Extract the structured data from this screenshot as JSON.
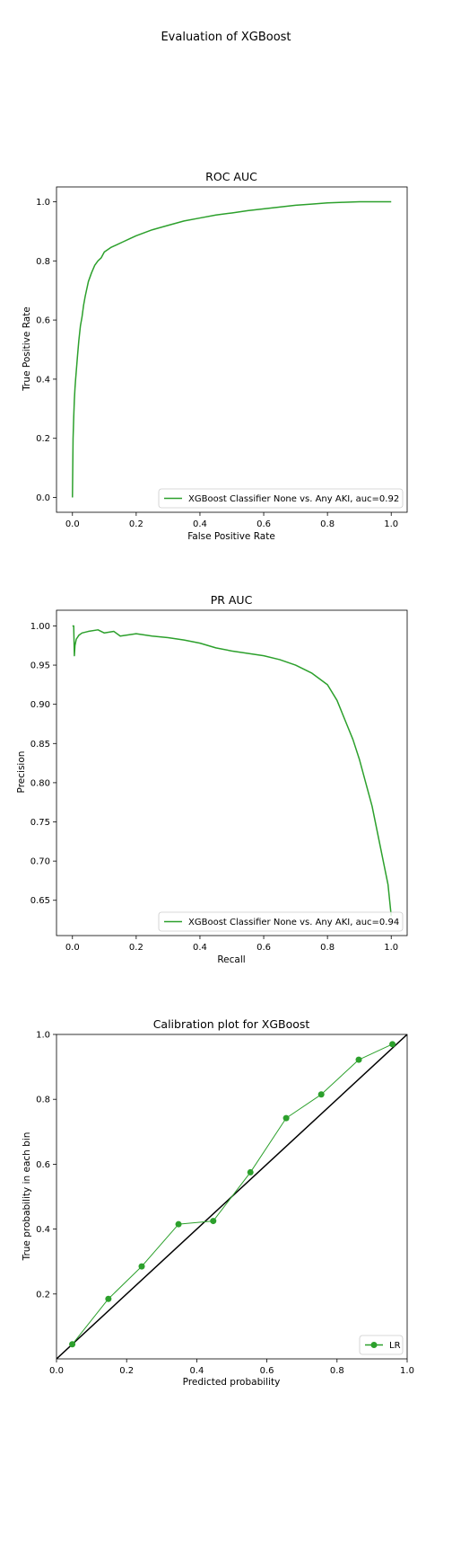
{
  "figure_title": "Evaluation of XGBoost",
  "chart_data": [
    {
      "type": "line",
      "title": "ROC AUC",
      "xlabel": "False Positive Rate",
      "ylabel": "True Positive Rate",
      "xlim": [
        -0.05,
        1.05
      ],
      "ylim": [
        -0.05,
        1.05
      ],
      "xticks": [
        "0.0",
        "0.2",
        "0.4",
        "0.6",
        "0.8",
        "1.0"
      ],
      "yticks": [
        "0.0",
        "0.2",
        "0.4",
        "0.6",
        "0.8",
        "1.0"
      ],
      "grid": false,
      "legend_position": "lower-right",
      "series": [
        {
          "name": "XGBoost Classifier None vs. Any AKI, auc=0.92",
          "color": "#2ca02c",
          "x": [
            0,
            0.002,
            0.004,
            0.006,
            0.008,
            0.01,
            0.013,
            0.016,
            0.02,
            0.025,
            0.03,
            0.035,
            0.04,
            0.05,
            0.06,
            0.07,
            0.08,
            0.09,
            0.1,
            0.12,
            0.14,
            0.16,
            0.18,
            0.2,
            0.25,
            0.3,
            0.35,
            0.4,
            0.45,
            0.5,
            0.55,
            0.6,
            0.65,
            0.7,
            0.75,
            0.8,
            0.85,
            0.9,
            0.95,
            1.0
          ],
          "y": [
            0,
            0.2,
            0.27,
            0.33,
            0.37,
            0.4,
            0.44,
            0.48,
            0.53,
            0.58,
            0.61,
            0.65,
            0.68,
            0.73,
            0.76,
            0.785,
            0.8,
            0.81,
            0.83,
            0.845,
            0.855,
            0.865,
            0.875,
            0.885,
            0.905,
            0.92,
            0.935,
            0.945,
            0.955,
            0.962,
            0.97,
            0.976,
            0.982,
            0.988,
            0.992,
            0.996,
            0.998,
            1.0,
            1.0,
            1.0
          ]
        }
      ]
    },
    {
      "type": "line",
      "title": "PR AUC",
      "xlabel": "Recall",
      "ylabel": "Precision",
      "xlim": [
        -0.05,
        1.05
      ],
      "ylim": [
        0.605,
        1.02
      ],
      "xticks": [
        "0.0",
        "0.2",
        "0.4",
        "0.6",
        "0.8",
        "1.0"
      ],
      "yticks": [
        "0.65",
        "0.70",
        "0.75",
        "0.80",
        "0.85",
        "0.90",
        "0.95",
        "1.00"
      ],
      "grid": false,
      "legend_position": "lower-right",
      "series": [
        {
          "name": "XGBoost Classifier None vs. Any AKI, auc=0.94",
          "color": "#2ca02c",
          "x": [
            0,
            0.004,
            0.006,
            0.008,
            0.012,
            0.02,
            0.03,
            0.05,
            0.08,
            0.1,
            0.13,
            0.15,
            0.2,
            0.25,
            0.3,
            0.35,
            0.4,
            0.45,
            0.5,
            0.55,
            0.6,
            0.65,
            0.7,
            0.75,
            0.8,
            0.83,
            0.86,
            0.88,
            0.9,
            0.92,
            0.94,
            0.96,
            0.98,
            0.99,
            1.0
          ],
          "y": [
            1.0,
            1.0,
            0.962,
            0.975,
            0.983,
            0.988,
            0.991,
            0.993,
            0.995,
            0.991,
            0.993,
            0.987,
            0.99,
            0.987,
            0.985,
            0.982,
            0.978,
            0.972,
            0.968,
            0.965,
            0.962,
            0.957,
            0.95,
            0.94,
            0.925,
            0.905,
            0.875,
            0.855,
            0.83,
            0.8,
            0.77,
            0.73,
            0.69,
            0.67,
            0.63
          ]
        }
      ]
    },
    {
      "type": "line",
      "title": "Calibration plot for XGBoost",
      "xlabel": "Predicted probability",
      "ylabel": "True probability in each bin",
      "xlim": [
        0.0,
        1.0
      ],
      "ylim": [
        0.0,
        1.0
      ],
      "xticks": [
        "0.0",
        "0.2",
        "0.4",
        "0.6",
        "0.8",
        "1.0"
      ],
      "yticks": [
        "0.2",
        "0.4",
        "0.6",
        "0.8",
        "1.0"
      ],
      "grid": false,
      "legend_position": "lower-right",
      "diagonal_color": "#000000",
      "series": [
        {
          "name": "LR",
          "color": "#2ca02c",
          "marker": "circle",
          "x": [
            0.045,
            0.148,
            0.243,
            0.348,
            0.447,
            0.553,
            0.655,
            0.755,
            0.862,
            0.958
          ],
          "y": [
            0.045,
            0.185,
            0.285,
            0.415,
            0.425,
            0.575,
            0.742,
            0.815,
            0.922,
            0.97
          ]
        }
      ]
    }
  ]
}
